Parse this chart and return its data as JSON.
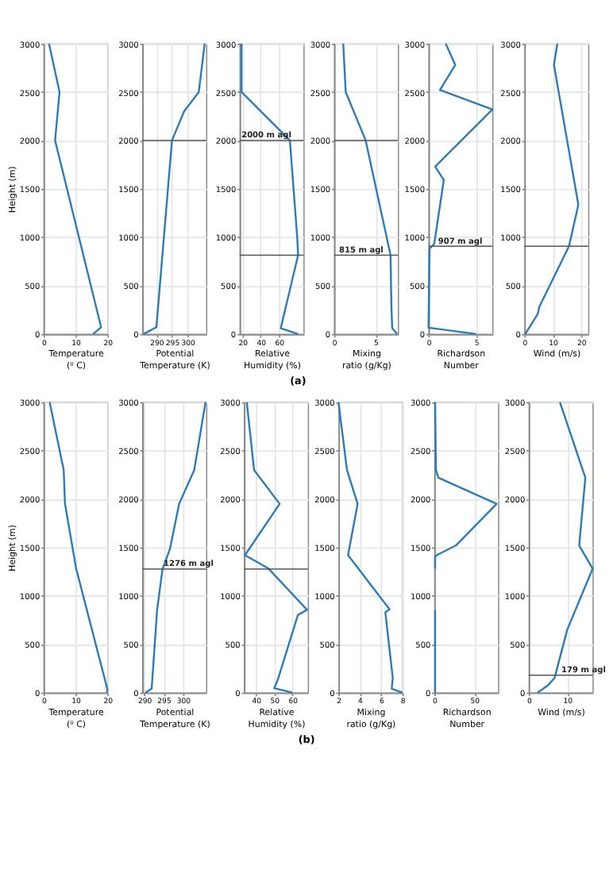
{
  "chart_data": [
    {
      "type": "line",
      "orientation": "horizontal",
      "ylabel": "Height (m)",
      "xlabel": "Temperature (⁰ C)",
      "xlim": [
        0,
        20
      ],
      "xticks": [
        0,
        10,
        20
      ],
      "ylim": [
        0,
        3000
      ],
      "yticks": [
        0,
        500,
        1000,
        1500,
        2000,
        2500,
        3000
      ],
      "grid": true,
      "annotations": [
        "(a)"
      ],
      "series": [
        {
          "color": "#2b7bba",
          "x": [
            0,
            70,
            2000,
            2500,
            3000
          ],
          "values": [
            15.5,
            18,
            3.6,
            5,
            1.7
          ]
        }
      ]
    },
    {
      "type": "line",
      "orientation": "horizontal",
      "xlabel": "Potential Temperature (K)",
      "xlim": [
        285.5,
        306
      ],
      "xticks": [
        290,
        295,
        300
      ],
      "ylim": [
        0,
        3000
      ],
      "yticks": [
        0,
        500,
        1000,
        1500,
        2000,
        2500,
        3000
      ],
      "grid": true,
      "ref_lines": [
        {
          "axis": "y",
          "value": 2000,
          "color": "#555555"
        }
      ],
      "series": [
        {
          "color": "#2b7bba",
          "x": [
            0,
            70,
            2000,
            2300,
            2500,
            3000
          ],
          "values": [
            285.9,
            290,
            295,
            298.9,
            303.6,
            305.5
          ]
        }
      ]
    },
    {
      "type": "line",
      "orientation": "horizontal",
      "xlabel": "Relative Humidity (%)",
      "xlim": [
        17,
        87
      ],
      "xticks": [
        20,
        40,
        60
      ],
      "ylim": [
        0,
        3000
      ],
      "yticks": [
        0,
        500,
        1000,
        1500,
        2000,
        2500,
        3000
      ],
      "grid": true,
      "ref_lines": [
        {
          "axis": "y",
          "value": 2000,
          "color": "#555555"
        },
        {
          "axis": "y",
          "value": 815,
          "color": "#555555"
        }
      ],
      "annotations": [
        {
          "text": "2000 m agl",
          "x": 19,
          "y": 2000
        }
      ],
      "series": [
        {
          "color": "#2b7bba",
          "x": [
            0,
            60,
            815,
            1000,
            1500,
            2000,
            2500,
            3000
          ],
          "values": [
            81,
            62,
            81,
            80,
            76,
            72,
            19,
            19
          ]
        }
      ]
    },
    {
      "type": "line",
      "orientation": "horizontal",
      "xlabel": "Mixing ratio (g/Kg)",
      "xlim": [
        0,
        7.7
      ],
      "xticks": [
        0,
        5
      ],
      "ylim": [
        0,
        3000
      ],
      "yticks": [
        0,
        500,
        1000,
        1500,
        2000,
        2500,
        3000
      ],
      "grid": true,
      "ref_lines": [
        {
          "axis": "y",
          "value": 2000,
          "color": "#555555"
        },
        {
          "axis": "y",
          "value": 815,
          "color": "#555555"
        }
      ],
      "annotations": [
        {
          "text": "815 m agl",
          "x": 0.6,
          "y": 815
        }
      ],
      "series": [
        {
          "color": "#2b7bba",
          "x": [
            0,
            60,
            300,
            815,
            2000,
            2250,
            2500,
            3000
          ],
          "values": [
            7.6,
            7.0,
            6.9,
            6.8,
            3.8,
            2.6,
            1.4,
            1.1
          ]
        }
      ]
    },
    {
      "type": "line",
      "orientation": "horizontal",
      "xlabel": "Richardson Number",
      "xlim": [
        0,
        6.7
      ],
      "xticks": [
        0,
        5
      ],
      "ylim": [
        0,
        3000
      ],
      "yticks": [
        0,
        500,
        1000,
        1500,
        2000,
        2500,
        3000
      ],
      "grid": true,
      "ref_lines": [
        {
          "axis": "y",
          "value": 907,
          "color": "#555555"
        }
      ],
      "annotations": [
        {
          "text": "907 m agl",
          "x": 1,
          "y": 907
        }
      ],
      "series": [
        {
          "color": "#2b7bba",
          "x": [
            0,
            65,
            880,
            930,
            1590,
            1730,
            2320,
            2520,
            2780,
            3000
          ],
          "values": [
            5,
            0,
            0.1,
            0.6,
            1.6,
            0.7,
            6.7,
            1.2,
            2.8,
            1.8
          ]
        }
      ]
    },
    {
      "type": "line",
      "orientation": "horizontal",
      "xlabel": "Wind (m/s)",
      "xlim": [
        0,
        22.5
      ],
      "xticks": [
        0,
        10,
        20
      ],
      "ylim": [
        0,
        3000
      ],
      "yticks": [
        0,
        500,
        1000,
        1500,
        2000,
        2500,
        3000
      ],
      "grid": true,
      "ref_lines": [
        {
          "axis": "y",
          "value": 907,
          "color": "#555555"
        }
      ],
      "series": [
        {
          "color": "#2b7bba",
          "x": [
            0,
            207,
            284,
            907,
            1335,
            2780,
            3000
          ],
          "values": [
            0.3,
            4.7,
            5.3,
            15.7,
            19,
            10.4,
            11.6
          ]
        }
      ]
    },
    {
      "type": "line",
      "orientation": "horizontal",
      "ylabel": "Height (m)",
      "xlabel": "Temperature (⁰ C)",
      "xlim": [
        0,
        20
      ],
      "xticks": [
        0,
        10,
        20
      ],
      "ylim": [
        0,
        3000
      ],
      "yticks": [
        0,
        500,
        1000,
        1500,
        2000,
        2500,
        3000
      ],
      "grid": true,
      "annotations": [
        "(b)"
      ],
      "series": [
        {
          "color": "#2b7bba",
          "x": [
            0,
            30,
            1280,
            1950,
            2300,
            3000
          ],
          "values": [
            19.8,
            20,
            10.2,
            6.7,
            6.3,
            1.9
          ]
        }
      ]
    },
    {
      "type": "line",
      "orientation": "horizontal",
      "xlabel": "Potential Temperature (K)",
      "xlim": [
        289.5,
        306
      ],
      "xticks": [
        290,
        295,
        300
      ],
      "ylim": [
        0,
        3000
      ],
      "yticks": [
        0,
        500,
        1000,
        1500,
        2000,
        2500,
        3000
      ],
      "grid": true,
      "ref_lines": [
        {
          "axis": "y",
          "value": 1276,
          "color": "#555555"
        }
      ],
      "annotations": [
        {
          "text": "1276 m agl",
          "x": 295,
          "y": 1276
        }
      ],
      "series": [
        {
          "color": "#2b7bba",
          "x": [
            0,
            40,
            850,
            1276,
            1480,
            1950,
            2300,
            3000
          ],
          "values": [
            290.3,
            291.9,
            293.3,
            294.7,
            296.6,
            299,
            302.9,
            305.8
          ]
        }
      ]
    },
    {
      "type": "line",
      "orientation": "horizontal",
      "xlabel": "Relative Humidity (%)",
      "xlim": [
        33.5,
        68.5
      ],
      "xticks": [
        40,
        50,
        60
      ],
      "ylim": [
        0,
        3000
      ],
      "yticks": [
        0,
        500,
        1000,
        1500,
        2000,
        2500,
        3000
      ],
      "grid": true,
      "ref_lines": [
        {
          "axis": "y",
          "value": 1276,
          "color": "#555555"
        }
      ],
      "series": [
        {
          "color": "#2b7bba",
          "x": [
            0,
            45,
            134,
            802,
            855,
            1280,
            1420,
            1950,
            2300,
            3000
          ],
          "values": [
            60,
            50,
            52,
            63,
            68,
            47,
            34,
            53,
            39,
            35
          ]
        }
      ]
    },
    {
      "type": "line",
      "orientation": "horizontal",
      "xlabel": "Mixing ratio (g/Kg)",
      "xlim": [
        2,
        8
      ],
      "xticks": [
        2,
        4,
        6,
        8
      ],
      "ylim": [
        0,
        3000
      ],
      "yticks": [
        0,
        500,
        1000,
        1500,
        2000,
        2500,
        3000
      ],
      "grid": true,
      "series": [
        {
          "color": "#2b7bba",
          "x": [
            0,
            40,
            150,
            830,
            860,
            1420,
            1950,
            2300,
            3000
          ],
          "values": [
            8,
            7,
            7.1,
            6.4,
            6.8,
            2.9,
            3.8,
            2.8,
            2
          ]
        }
      ]
    },
    {
      "type": "line",
      "orientation": "horizontal",
      "xlabel": "Richardson Number",
      "xlim": [
        0,
        80
      ],
      "xticks": [
        0,
        50
      ],
      "ylim": [
        0,
        3000
      ],
      "yticks": [
        0,
        500,
        1000,
        1500,
        2000,
        2500,
        3000
      ],
      "grid": true,
      "series": [
        {
          "color": "#2b7bba",
          "x": [
            0,
            850,
            1000,
            1280,
            1400,
            1420,
            1520,
            1950,
            2220,
            2300,
            3000
          ],
          "values": [
            1,
            1,
            null,
            1,
            1,
            3,
            27,
            78,
            5,
            2,
            1
          ]
        }
      ]
    },
    {
      "type": "line",
      "orientation": "horizontal",
      "xlabel": "Wind (m/s)",
      "xlim": [
        0,
        16.6
      ],
      "xticks": [
        0,
        10
      ],
      "ylim": [
        0,
        3000
      ],
      "yticks": [
        0,
        500,
        1000,
        1500,
        2000,
        2500,
        3000
      ],
      "grid": true,
      "ref_lines": [
        {
          "axis": "y",
          "value": 179,
          "color": "#555555"
        }
      ],
      "annotations": [
        {
          "text": "179 m agl",
          "x": 8.5,
          "y": 179
        }
      ],
      "series": [
        {
          "color": "#2b7bba",
          "x": [
            0,
            76,
            150,
            650,
            1280,
            1520,
            2220,
            3000
          ],
          "values": [
            2.3,
            5,
            6.7,
            10,
            16.6,
            13.1,
            14.7,
            8.1
          ]
        }
      ]
    }
  ]
}
